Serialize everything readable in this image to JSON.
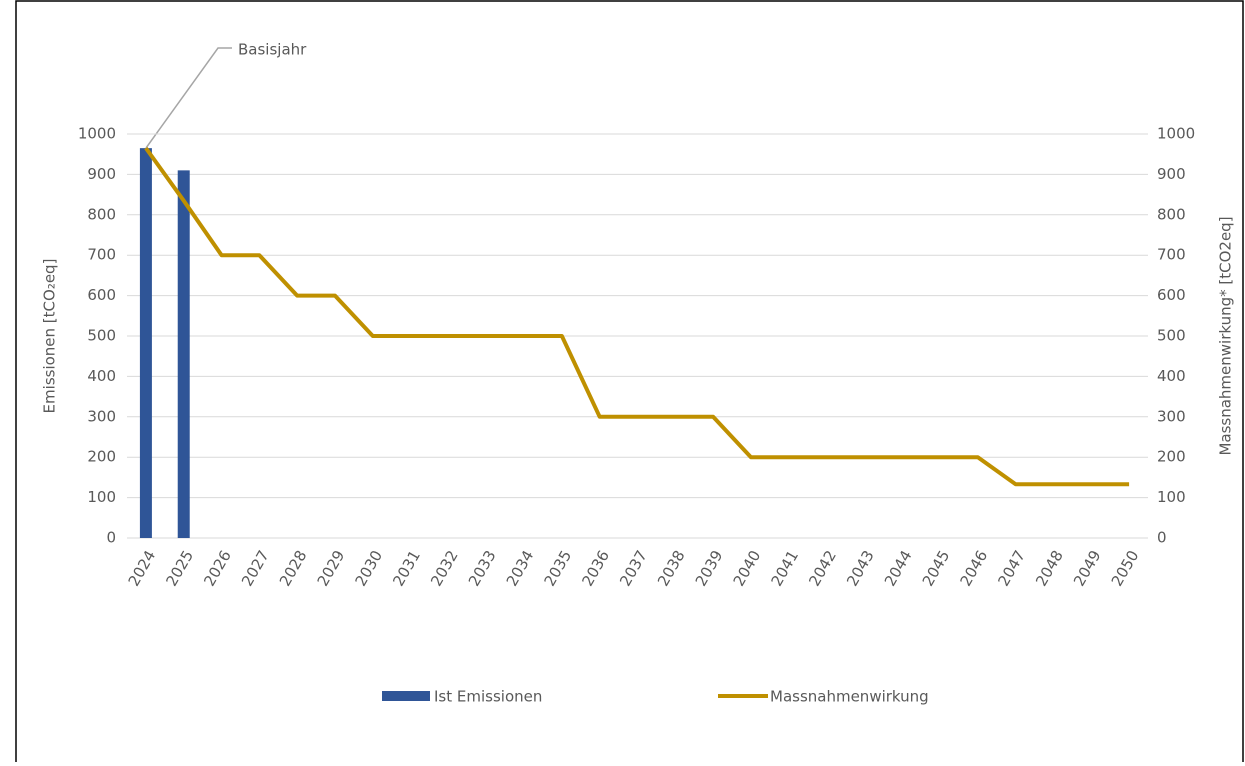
{
  "chart_data": {
    "type": "bar-line",
    "categories": [
      "2024",
      "2025",
      "2026",
      "2027",
      "2028",
      "2029",
      "2030",
      "2031",
      "2032",
      "2033",
      "2034",
      "2035",
      "2036",
      "2037",
      "2038",
      "2039",
      "2040",
      "2041",
      "2042",
      "2043",
      "2044",
      "2045",
      "2046",
      "2047",
      "2048",
      "2049",
      "2050"
    ],
    "series": [
      {
        "name": "Ist Emissionen",
        "type": "bar",
        "color": "#2f5597",
        "values": [
          965,
          910,
          null,
          null,
          null,
          null,
          null,
          null,
          null,
          null,
          null,
          null,
          null,
          null,
          null,
          null,
          null,
          null,
          null,
          null,
          null,
          null,
          null,
          null,
          null,
          null,
          null
        ]
      },
      {
        "name": "Massnahmenwirkung",
        "type": "line",
        "axis": "y2",
        "color": "#bf9000",
        "values": [
          965,
          835,
          700,
          700,
          600,
          600,
          500,
          500,
          500,
          500,
          500,
          500,
          300,
          300,
          300,
          300,
          200,
          200,
          200,
          200,
          200,
          200,
          200,
          133,
          133,
          133,
          133
        ]
      }
    ],
    "ylabel": "Emissionen [tCO₂eq]",
    "y2label": "Massnahmenwirkung* [tCO2eq]",
    "annotation": "Basisjahr",
    "ylim": [
      0,
      1000
    ],
    "yticks": [
      0,
      100,
      200,
      300,
      400,
      500,
      600,
      700,
      800,
      900,
      1000
    ],
    "y2lim": [
      0,
      1000
    ],
    "y2ticks": [
      0,
      100,
      200,
      300,
      400,
      500,
      600,
      700,
      800,
      900,
      1000
    ],
    "grid": true,
    "legend": "bottom"
  }
}
